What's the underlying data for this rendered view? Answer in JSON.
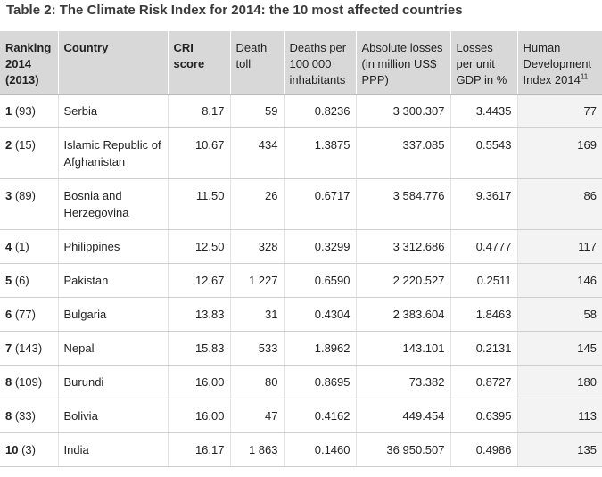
{
  "title": "Table 2: The Climate Risk Index for 2014: the 10 most affected countries",
  "headers": {
    "ranking": "Ranking 2014 (2013)",
    "country": "Country",
    "cri": "CRI score",
    "death_toll": "Death toll",
    "deaths_per": "Deaths per 100 000 inhabitants",
    "abs_losses": "Absolute losses (in million US$ PPP)",
    "losses_gdp": "Losses per unit GDP in %",
    "hdi": "Human Development Index 2014",
    "hdi_footnote": "11"
  },
  "rows": [
    {
      "rank": "1",
      "prev": " (93)",
      "country": "Serbia",
      "cri": "8.17",
      "deaths": "59",
      "per100k": "0.8236",
      "losses": "3 300.307",
      "gdp": "3.4435",
      "hdi": "77"
    },
    {
      "rank": "2",
      "prev": " (15)",
      "country": "Islamic Republic of Afghanistan",
      "cri": "10.67",
      "deaths": "434",
      "per100k": "1.3875",
      "losses": "337.085",
      "gdp": "0.5543",
      "hdi": "169"
    },
    {
      "rank": "3",
      "prev": " (89)",
      "country": "Bosnia and Herzegovina",
      "cri": "11.50",
      "deaths": "26",
      "per100k": "0.6717",
      "losses": "3 584.776",
      "gdp": "9.3617",
      "hdi": "86"
    },
    {
      "rank": "4",
      "prev": " (1)",
      "country": "Philippines",
      "cri": "12.50",
      "deaths": "328",
      "per100k": "0.3299",
      "losses": "3 312.686",
      "gdp": "0.4777",
      "hdi": "117"
    },
    {
      "rank": "5",
      "prev": " (6)",
      "country": "Pakistan",
      "cri": "12.67",
      "deaths": "1 227",
      "per100k": "0.6590",
      "losses": "2 220.527",
      "gdp": "0.2511",
      "hdi": "146"
    },
    {
      "rank": "6",
      "prev": " (77)",
      "country": "Bulgaria",
      "cri": "13.83",
      "deaths": "31",
      "per100k": "0.4304",
      "losses": "2 383.604",
      "gdp": "1.8463",
      "hdi": "58"
    },
    {
      "rank": "7",
      "prev": " (143)",
      "country": "Nepal",
      "cri": "15.83",
      "deaths": "533",
      "per100k": "1.8962",
      "losses": "143.101",
      "gdp": "0.2131",
      "hdi": "145"
    },
    {
      "rank": "8",
      "prev": " (109)",
      "country": "Burundi",
      "cri": "16.00",
      "deaths": "80",
      "per100k": "0.8695",
      "losses": "73.382",
      "gdp": "0.8727",
      "hdi": "180"
    },
    {
      "rank": "8",
      "prev": " (33)",
      "country": "Bolivia",
      "cri": "16.00",
      "deaths": "47",
      "per100k": "0.4162",
      "losses": "449.454",
      "gdp": "0.6395",
      "hdi": "113"
    },
    {
      "rank": "10",
      "prev": " (3)",
      "country": "India",
      "cri": "16.17",
      "deaths": "1 863",
      "per100k": "0.1460",
      "losses": "36 950.507",
      "gdp": "0.4986",
      "hdi": "135"
    }
  ]
}
